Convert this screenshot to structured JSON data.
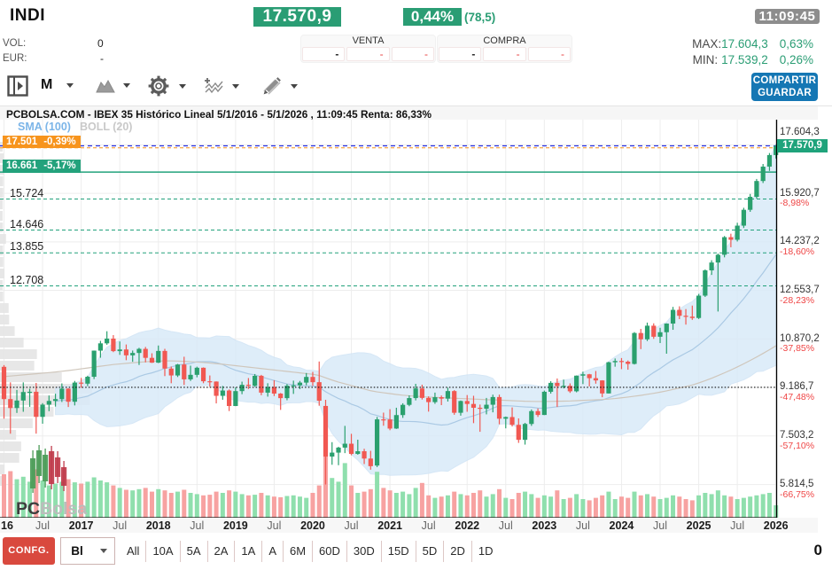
{
  "header": {
    "symbol": "INDI",
    "vol_label": "VOL:",
    "vol_value": "0",
    "eur_label": "EUR:",
    "eur_value": "-",
    "price": "17.570,9",
    "change_pct": "0,44%",
    "change_points": "(78,5)",
    "time": "11:09:45",
    "venta": {
      "label": "VENTA",
      "cells": [
        "-",
        "-",
        "-"
      ]
    },
    "compra": {
      "label": "COMPRA",
      "cells": [
        "-",
        "-",
        "-"
      ]
    },
    "max_label": "MAX:",
    "max_value": "17.604,3",
    "max_pct": "0,63%",
    "min_label": "MIN:",
    "min_value": "17.539,2",
    "min_pct": "0,26%",
    "share_line1": "COMPARTIR",
    "share_line2": "GUARDAR"
  },
  "toolbar": {
    "timeframe": "M",
    "icons": [
      "panel-toggle",
      "timeframe",
      "chart-type",
      "settings",
      "indicators",
      "draw"
    ]
  },
  "chart": {
    "title": "PCBOLSA.COM - IBEX 35 Histórico Lineal 5/1/2016 - 5/1/2026 , 11:09:45 Renta: 86,33%",
    "legend_sma": "SMA (100)",
    "legend_boll": "BOLL (20)",
    "watermark_bold": "PC",
    "watermark_light": "Bolsa",
    "current_price_label": "17.570,9"
  },
  "chart_data": {
    "type": "candlestick",
    "title": "IBEX 35 Histórico Lineal 5/1/2016 - 5/1/2026",
    "timeframe": "monthly",
    "x_range": [
      "2016-01",
      "2026-01"
    ],
    "current_price": 17570.9,
    "levels": [
      {
        "label": "17.501",
        "pct": "-0,39%",
        "price": 17501,
        "style": "dashed",
        "color": "#f7941d",
        "has_box": true
      },
      {
        "label": "16.661",
        "pct": "-5,17%",
        "price": 16661,
        "style": "solid",
        "color": "#23a27c",
        "has_box": true
      },
      {
        "label": "15.724",
        "pct": "",
        "price": 15724,
        "style": "dashed",
        "color": "#23a27c",
        "has_box": false
      },
      {
        "label": "14.646",
        "pct": "",
        "price": 14646,
        "style": "dashed",
        "color": "#23a27c",
        "has_box": false
      },
      {
        "label": "13.855",
        "pct": "",
        "price": 13855,
        "style": "dashed",
        "color": "#23a27c",
        "has_box": false
      },
      {
        "label": "12.708",
        "pct": "",
        "price": 12708,
        "style": "dashed",
        "color": "#23a27c",
        "has_box": false
      }
    ],
    "baseline": {
      "price": 9186.7,
      "style": "dotted",
      "color": "#111111"
    },
    "price_line": {
      "price": 17570.9,
      "style": "dashed",
      "color": "#2b31e0"
    },
    "right_ticks": [
      {
        "label": "17.604,3",
        "pct": "",
        "price": 17604.3
      },
      {
        "label": "15.920,7",
        "pct": "-8,98%",
        "price": 15920.7
      },
      {
        "label": "14.237,2",
        "pct": "-18,60%",
        "price": 14237.2
      },
      {
        "label": "12.553,7",
        "pct": "-28,23%",
        "price": 12553.7
      },
      {
        "label": "10.870,2",
        "pct": "-37,85%",
        "price": 10870.2
      },
      {
        "label": "9.186,7",
        "pct": "-47,48%",
        "price": 9186.7
      },
      {
        "label": "7.503,2",
        "pct": "-57,10%",
        "price": 7503.2
      },
      {
        "label": "5.814,5",
        "pct": "-66,75%",
        "price": 5814.5
      }
    ],
    "x_ticks": [
      "16",
      "Jul",
      "2017",
      "Jul",
      "2018",
      "Jul",
      "2019",
      "Jul",
      "2020",
      "Jul",
      "2021",
      "Jul",
      "2022",
      "Jul",
      "2023",
      "Jul",
      "2024",
      "Jul",
      "2025",
      "Jul",
      "2026"
    ],
    "candles": [
      [
        9900,
        9960,
        8100,
        8780,
        70
      ],
      [
        8780,
        9360,
        7580,
        8470,
        75
      ],
      [
        8470,
        9100,
        8300,
        8730,
        62
      ],
      [
        8730,
        9360,
        8340,
        9025,
        66
      ],
      [
        9025,
        9140,
        8510,
        9034,
        58
      ],
      [
        9034,
        9340,
        7580,
        8163,
        78
      ],
      [
        8163,
        8640,
        7925,
        8587,
        60
      ],
      [
        8587,
        8905,
        8360,
        8716,
        52
      ],
      [
        8716,
        8965,
        8520,
        8779,
        55
      ],
      [
        8779,
        9325,
        8680,
        9143,
        58
      ],
      [
        9143,
        9155,
        8505,
        8688,
        62
      ],
      [
        8688,
        9410,
        8560,
        9352,
        57
      ],
      [
        9352,
        9515,
        9175,
        9315,
        55
      ],
      [
        9315,
        9590,
        9230,
        9555,
        58
      ],
      [
        9555,
        10465,
        9475,
        10462,
        65
      ],
      [
        10462,
        10800,
        10215,
        10715,
        60
      ],
      [
        10715,
        11135,
        10665,
        10880,
        57
      ],
      [
        10880,
        11000,
        10410,
        10445,
        52
      ],
      [
        10445,
        10780,
        10315,
        10502,
        48
      ],
      [
        10502,
        10675,
        10130,
        10299,
        45
      ],
      [
        10299,
        10465,
        10075,
        10381,
        44
      ],
      [
        10381,
        10560,
        9965,
        10523,
        46
      ],
      [
        10523,
        10590,
        10055,
        10211,
        48
      ],
      [
        10211,
        10370,
        10035,
        10044,
        42
      ],
      [
        10044,
        10640,
        10030,
        10452,
        46
      ],
      [
        10452,
        10525,
        9578,
        9840,
        44
      ],
      [
        9840,
        9910,
        9330,
        9600,
        40
      ],
      [
        9600,
        10000,
        9546,
        9980,
        42
      ],
      [
        9980,
        10250,
        9270,
        9465,
        45
      ],
      [
        9465,
        9940,
        9410,
        9622,
        40
      ],
      [
        9622,
        9905,
        9536,
        9868,
        38
      ],
      [
        9868,
        9880,
        9330,
        9399,
        36
      ],
      [
        9399,
        9600,
        9210,
        9389,
        37
      ],
      [
        9389,
        9395,
        8630,
        8893,
        42
      ],
      [
        8893,
        9235,
        8757,
        9077,
        40
      ],
      [
        9077,
        9115,
        8365,
        8540,
        44
      ],
      [
        8540,
        9185,
        8535,
        9057,
        42
      ],
      [
        9057,
        9385,
        8950,
        9277,
        38
      ],
      [
        9277,
        9510,
        9130,
        9240,
        36
      ],
      [
        9240,
        9650,
        9205,
        9588,
        37
      ],
      [
        9588,
        9620,
        8915,
        9004,
        40
      ],
      [
        9004,
        9330,
        8865,
        9199,
        36
      ],
      [
        9199,
        9435,
        8885,
        8971,
        34
      ],
      [
        8971,
        8990,
        8405,
        8813,
        33
      ],
      [
        8813,
        9300,
        8740,
        9245,
        35
      ],
      [
        9245,
        9420,
        8960,
        9258,
        36
      ],
      [
        9258,
        9410,
        9125,
        9352,
        34
      ],
      [
        9352,
        9685,
        9260,
        9549,
        32
      ],
      [
        9549,
        9725,
        9240,
        9367,
        40
      ],
      [
        9367,
        10085,
        8550,
        8723,
        52
      ],
      [
        8542,
        8755,
        5814.5,
        6785,
        100
      ],
      [
        6785,
        7285,
        6500,
        6922,
        64
      ],
      [
        6922,
        7125,
        6485,
        7096,
        58
      ],
      [
        7096,
        7850,
        6905,
        7231,
        88
      ],
      [
        7231,
        7575,
        6830,
        6877,
        52
      ],
      [
        6877,
        7370,
        6850,
        6970,
        40
      ],
      [
        6970,
        7055,
        6525,
        6716,
        42
      ],
      [
        6716,
        6985,
        6330,
        6452,
        46
      ],
      [
        6474,
        8160,
        6420,
        8076,
        74
      ],
      [
        8076,
        8310,
        7855,
        8073,
        48
      ],
      [
        8073,
        8430,
        7700,
        7757,
        44
      ],
      [
        7757,
        8480,
        7745,
        8225,
        40
      ],
      [
        8225,
        8635,
        8128,
        8580,
        42
      ],
      [
        8580,
        8910,
        8533,
        8815,
        38
      ],
      [
        8815,
        9310,
        8735,
        9149,
        48
      ],
      [
        9149,
        9280,
        8765,
        8821,
        56
      ],
      [
        8821,
        8875,
        8345,
        8675,
        36
      ],
      [
        8675,
        9005,
        8615,
        8846,
        32
      ],
      [
        8846,
        8905,
        8570,
        8796,
        34
      ],
      [
        8796,
        9175,
        8695,
        9058,
        36
      ],
      [
        9058,
        9090,
        8235,
        8305,
        42
      ],
      [
        8305,
        8730,
        8205,
        8713,
        38
      ],
      [
        8713,
        8920,
        8340,
        8611,
        36
      ],
      [
        8611,
        8895,
        7945,
        8479,
        40
      ],
      [
        8479,
        8590,
        7645,
        8445,
        44
      ],
      [
        8445,
        8820,
        8250,
        8584,
        34
      ],
      [
        8584,
        8935,
        8320,
        8851,
        38
      ],
      [
        8851,
        8935,
        7905,
        8099,
        46
      ],
      [
        8099,
        8175,
        7765,
        8156,
        32
      ],
      [
        8156,
        8490,
        7830,
        7886,
        30
      ],
      [
        7886,
        8110,
        7260,
        7366,
        40
      ],
      [
        7366,
        7955,
        7200,
        7917,
        42
      ],
      [
        7917,
        8420,
        7850,
        8363,
        38
      ],
      [
        8363,
        8455,
        8160,
        8229,
        32
      ],
      [
        8229,
        9075,
        8225,
        9034,
        36
      ],
      [
        9034,
        9400,
        8970,
        9343,
        34
      ],
      [
        9343,
        9495,
        8505,
        9232,
        44
      ],
      [
        9232,
        9455,
        9150,
        9241,
        30
      ],
      [
        9241,
        9325,
        8995,
        9050,
        32
      ],
      [
        9050,
        9600,
        9015,
        9593,
        38
      ],
      [
        9593,
        9730,
        9300,
        9641,
        30
      ],
      [
        9641,
        9655,
        9220,
        9506,
        28
      ],
      [
        9506,
        9755,
        9315,
        9428,
        32
      ],
      [
        9428,
        9435,
        8845,
        8976,
        36
      ],
      [
        8976,
        10075,
        8975,
        10058,
        42
      ],
      [
        10058,
        10190,
        9905,
        10102,
        30
      ],
      [
        10102,
        10205,
        9820,
        10078,
        34
      ],
      [
        10078,
        10120,
        9800,
        10001,
        32
      ],
      [
        10001,
        11105,
        9980,
        11074,
        42
      ],
      [
        11074,
        11215,
        10515,
        10854,
        36
      ],
      [
        10854,
        11435,
        10795,
        11327,
        38
      ],
      [
        11327,
        11410,
        10870,
        10944,
        34
      ],
      [
        10944,
        11255,
        10725,
        11101,
        30
      ],
      [
        11101,
        11410,
        10355,
        11401,
        32
      ],
      [
        11401,
        11980,
        11185,
        11877,
        36
      ],
      [
        11877,
        12000,
        11555,
        11672,
        34
      ],
      [
        11672,
        11905,
        11365,
        11641,
        30
      ],
      [
        11641,
        12025,
        11530,
        11595,
        28
      ],
      [
        11595,
        12430,
        11560,
        12370,
        36
      ],
      [
        12370,
        13280,
        12325,
        13248,
        40
      ],
      [
        13248,
        13600,
        13090,
        13520,
        38
      ],
      [
        13520,
        13830,
        11820,
        13790,
        44
      ],
      [
        13790,
        14440,
        13700,
        14400,
        36
      ],
      [
        14400,
        14520,
        14050,
        14310,
        34
      ],
      [
        14310,
        14900,
        14250,
        14800,
        30
      ],
      [
        14800,
        15420,
        14720,
        15350,
        32
      ],
      [
        15350,
        15900,
        15280,
        15800,
        34
      ],
      [
        15800,
        16420,
        15740,
        16350,
        36
      ],
      [
        16350,
        16940,
        16280,
        16850,
        38
      ],
      [
        16850,
        17320,
        16700,
        17250,
        40
      ],
      [
        17250,
        17604.3,
        17130,
        17570.9,
        20
      ]
    ],
    "sma100": [
      9560,
      9580,
      9600,
      9620,
      9640,
      9660,
      9680,
      9700,
      9720,
      9745,
      9770,
      9800,
      9830,
      9860,
      9890,
      9920,
      9950,
      9980,
      10000,
      10020,
      10040,
      10060,
      10075,
      10090,
      10100,
      10105,
      10105,
      10100,
      10090,
      10080,
      10065,
      10050,
      10030,
      10010,
      9990,
      9965,
      9940,
      9915,
      9890,
      9865,
      9840,
      9815,
      9790,
      9765,
      9740,
      9715,
      9690,
      9665,
      9640,
      9600,
      9520,
      9440,
      9370,
      9310,
      9250,
      9190,
      9130,
      9070,
      9030,
      9000,
      8970,
      8940,
      8915,
      8895,
      8880,
      8865,
      8850,
      8840,
      8830,
      8820,
      8810,
      8800,
      8790,
      8780,
      8770,
      8760,
      8755,
      8745,
      8735,
      8725,
      8715,
      8705,
      8700,
      8695,
      8695,
      8700,
      8705,
      8710,
      8715,
      8725,
      8735,
      8745,
      8755,
      8765,
      8780,
      8800,
      8825,
      8850,
      8880,
      8910,
      8945,
      8980,
      9020,
      9065,
      9115,
      9165,
      9215,
      9270,
      9340,
      9420,
      9505,
      9595,
      9690,
      9790,
      9895,
      10005,
      10120,
      10240,
      10365,
      10495,
      10630
    ],
    "colors": {
      "up": "#2aa06e",
      "down": "#f15852",
      "vol_up": "#8fdfad",
      "vol_down": "#f7a2a1",
      "band_fill": "#d9eaf8",
      "band_edge": "#c4def2",
      "band_mid": "#aac9e4",
      "sma100": "#cfc6bb",
      "profile": "#e4e4e4",
      "grid": "#ededed"
    }
  },
  "footer": {
    "confg": "CONFG.",
    "selector": "Bl",
    "ranges": [
      "All",
      "10A",
      "5A",
      "2A",
      "1A",
      "A",
      "6M",
      "60D",
      "30D",
      "15D",
      "5D",
      "2D",
      "1D"
    ],
    "counter": "0"
  },
  "colors": {
    "accent_green": "#2a9d74",
    "axis_green": "#1fa37b",
    "red": "#d9493e",
    "blue": "#1577b4",
    "orange": "#f7941d"
  }
}
